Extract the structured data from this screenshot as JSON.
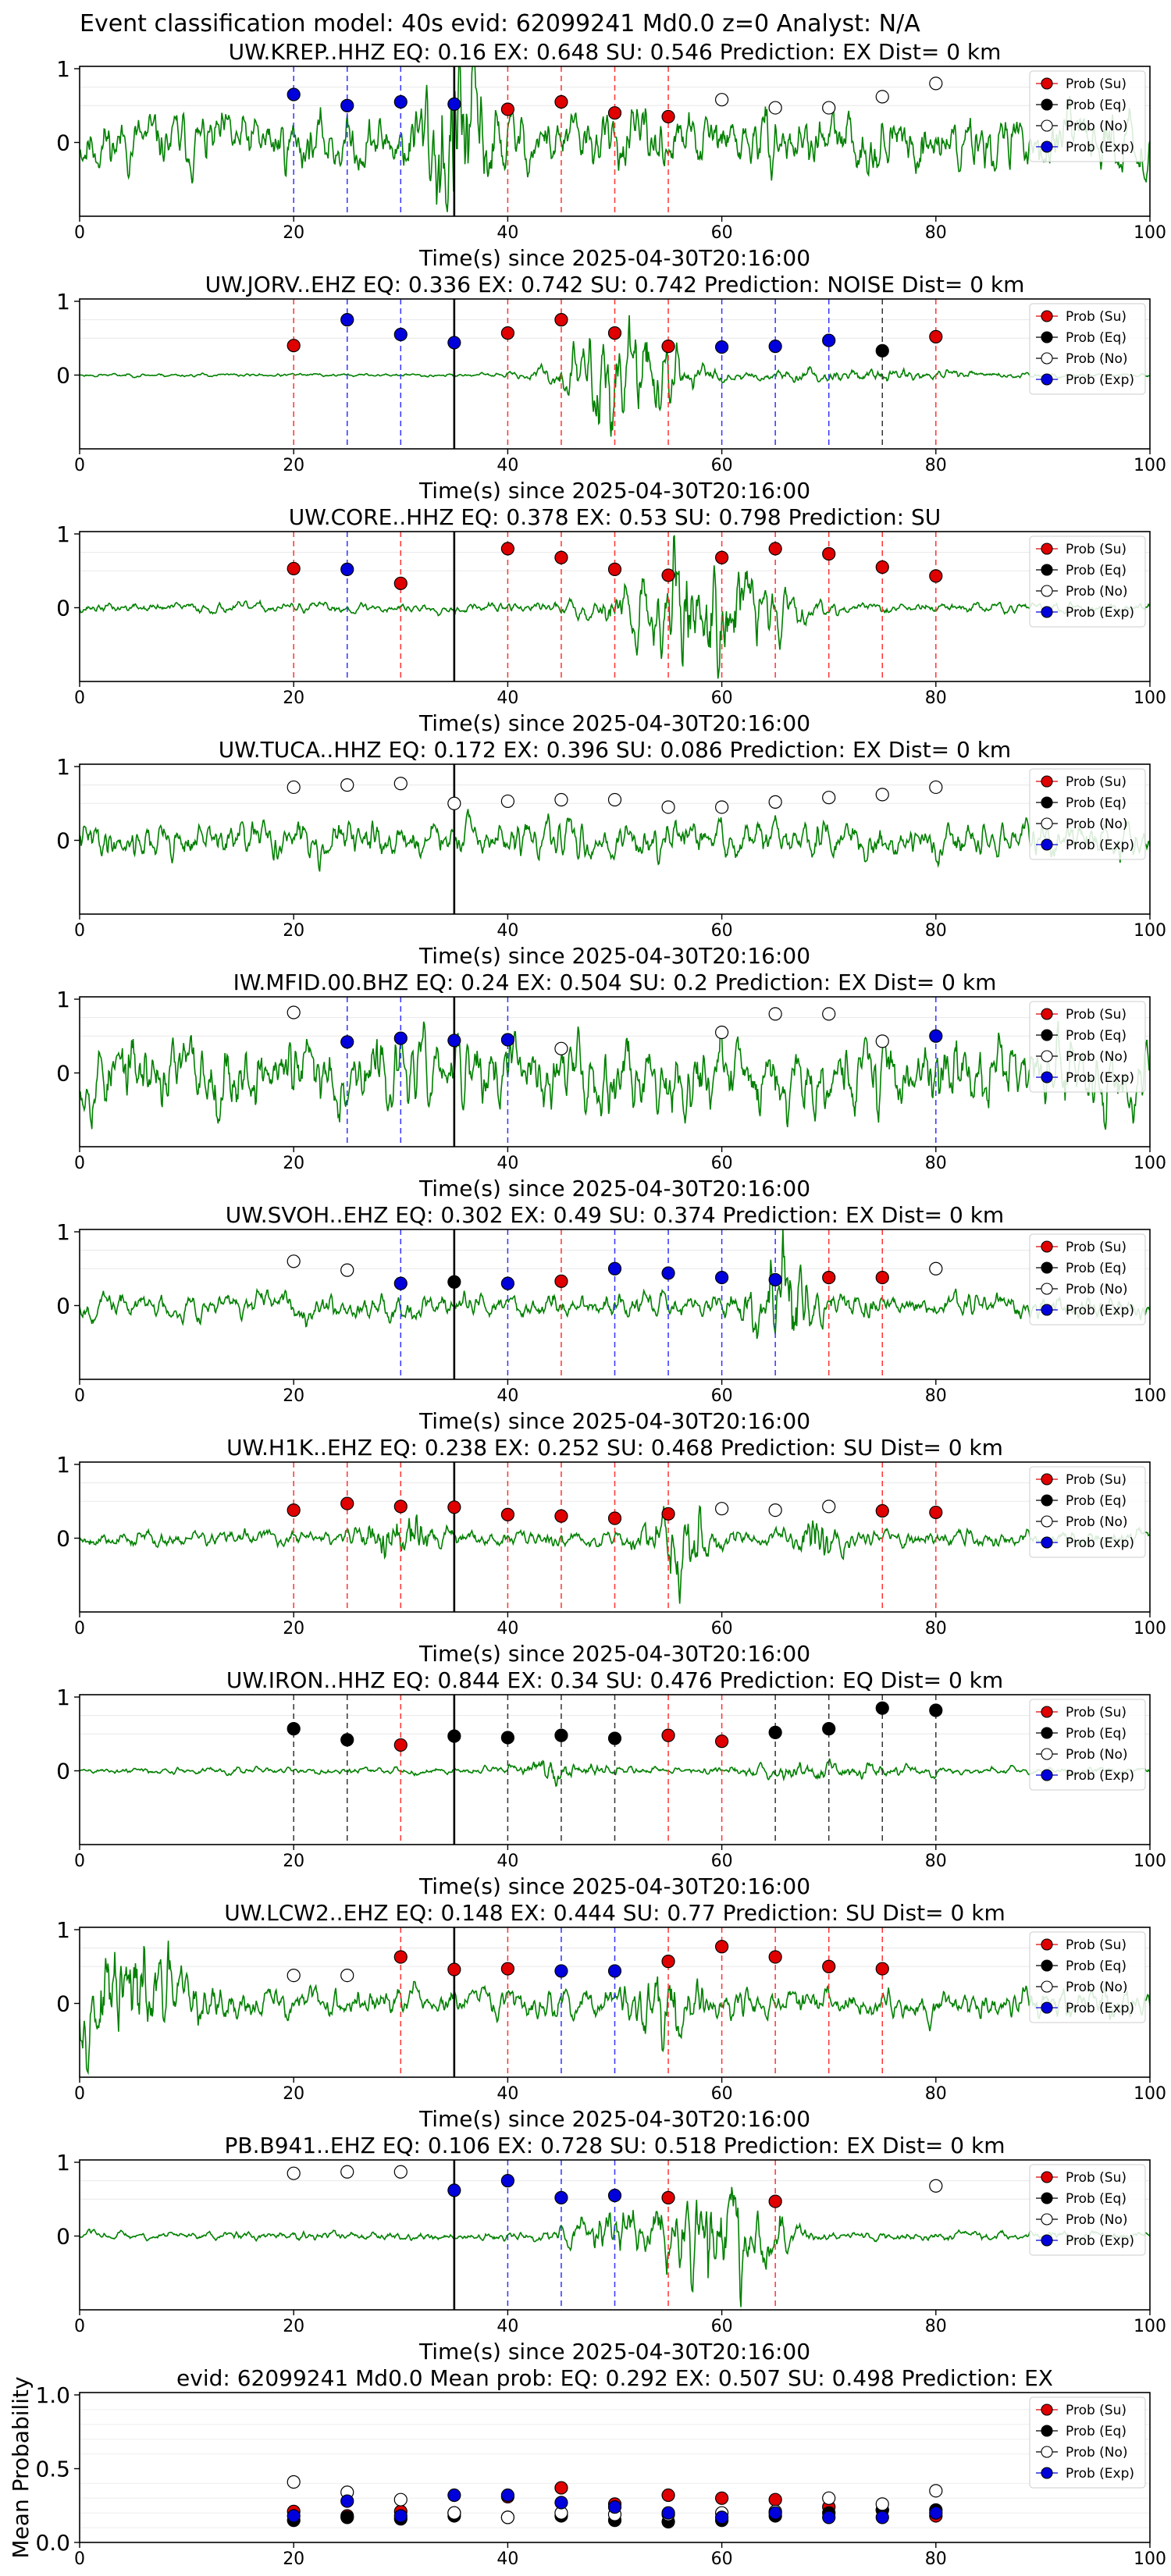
{
  "figure": {
    "suptitle": "Event classification model: 40s evid: 62099241 Md0.0 z=0 Analyst: N/A",
    "xlabel": "Time(s) since 2025-04-30T20:16:00",
    "legend": [
      "Prob (Su)",
      "Prob (Eq)",
      "Prob (No)",
      "Prob (Exp)"
    ],
    "colors": {
      "su": "#e00000",
      "eq": "#000000",
      "no": "#ffffff",
      "exp": "#0000dd",
      "trace": "#008000",
      "su_line": "#ff3333",
      "eq_line": "#333333",
      "exp_line": "#3333ff"
    }
  },
  "chart_data": [
    {
      "type": "scatter",
      "station": "UW.KREP..HHZ",
      "title": "UW.KREP..HHZ   EQ: 0.16  EX: 0.648  SU: 0.546   Prediction: EX    Dist= 0 km",
      "xlim": [
        0,
        100
      ],
      "ylim": [
        -1,
        1
      ],
      "xticks": [
        0,
        20,
        40,
        60,
        80,
        100
      ],
      "yticks": [
        0,
        1
      ],
      "xlabel": "Time(s) since 2025-04-30T20:16:00",
      "ylabel": "",
      "legend_position": "top-right",
      "vertical_line": 35,
      "trace_seed": 11,
      "trace_amp": 0.35,
      "trace_env": [
        [
          35,
          3.0,
          4
        ]
      ],
      "points": [
        [
          20,
          "exp",
          0.65
        ],
        [
          25,
          "exp",
          0.5
        ],
        [
          30,
          "exp",
          0.55
        ],
        [
          35,
          "exp",
          0.52
        ],
        [
          40,
          "su",
          0.45
        ],
        [
          45,
          "su",
          0.55
        ],
        [
          50,
          "su",
          0.4
        ],
        [
          55,
          "su",
          0.35
        ],
        [
          60,
          "no",
          0.58
        ],
        [
          65,
          "no",
          0.47
        ],
        [
          70,
          "no",
          0.47
        ],
        [
          75,
          "no",
          0.62
        ],
        [
          80,
          "no",
          0.8
        ]
      ]
    },
    {
      "type": "scatter",
      "station": "UW.JORV..EHZ",
      "title": "UW.JORV..EHZ   EQ: 0.336  EX: 0.742  SU: 0.742   Prediction: NOISE    Dist= 0 km",
      "xlim": [
        0,
        100
      ],
      "ylim": [
        -1,
        1
      ],
      "xticks": [
        0,
        20,
        40,
        60,
        80,
        100
      ],
      "yticks": [
        0,
        1
      ],
      "xlabel": "Time(s) since 2025-04-30T20:16:00",
      "ylabel": "",
      "legend_position": "top-right",
      "vertical_line": 35,
      "trace_seed": 23,
      "trace_amp": 0.02,
      "trace_env": [
        [
          50,
          5.0,
          25
        ],
        [
          70,
          15.0,
          4
        ]
      ],
      "points": [
        [
          20,
          "su",
          0.4
        ],
        [
          25,
          "exp",
          0.75
        ],
        [
          30,
          "exp",
          0.55
        ],
        [
          35,
          "exp",
          0.44
        ],
        [
          40,
          "su",
          0.57
        ],
        [
          45,
          "su",
          0.75
        ],
        [
          50,
          "su",
          0.57
        ],
        [
          55,
          "su",
          0.39
        ],
        [
          60,
          "exp",
          0.38
        ],
        [
          65,
          "exp",
          0.39
        ],
        [
          70,
          "exp",
          0.47
        ],
        [
          75,
          "eq",
          0.33
        ],
        [
          80,
          "su",
          0.52
        ]
      ]
    },
    {
      "type": "scatter",
      "station": "UW.CORE..HHZ",
      "title": "UW.CORE..HHZ   EQ: 0.378  EX: 0.53  SU: 0.798   Prediction: SU",
      "xlim": [
        0,
        100
      ],
      "ylim": [
        -1,
        1
      ],
      "xticks": [
        0,
        20,
        40,
        60,
        80,
        100
      ],
      "yticks": [
        0,
        1
      ],
      "xlabel": "Time(s) since 2025-04-30T20:16:00",
      "ylabel": "",
      "legend_position": "top-right",
      "vertical_line": 35,
      "trace_seed": 37,
      "trace_amp": 0.06,
      "trace_env": [
        [
          58,
          7.0,
          14
        ]
      ],
      "points": [
        [
          20,
          "su",
          0.53
        ],
        [
          25,
          "exp",
          0.52
        ],
        [
          30,
          "su",
          0.33
        ],
        [
          40,
          "su",
          0.8
        ],
        [
          45,
          "su",
          0.68
        ],
        [
          50,
          "su",
          0.52
        ],
        [
          55,
          "su",
          0.44
        ],
        [
          60,
          "su",
          0.68
        ],
        [
          65,
          "su",
          0.8
        ],
        [
          70,
          "su",
          0.73
        ],
        [
          75,
          "su",
          0.55
        ],
        [
          80,
          "su",
          0.43
        ]
      ]
    },
    {
      "type": "scatter",
      "station": "UW.TUCA..HHZ",
      "title": "UW.TUCA..HHZ   EQ: 0.172  EX: 0.396  SU: 0.086   Prediction: EX    Dist= 0 km",
      "xlim": [
        0,
        100
      ],
      "ylim": [
        -1,
        1
      ],
      "xticks": [
        0,
        20,
        40,
        60,
        80,
        100
      ],
      "yticks": [
        0,
        1
      ],
      "xlabel": "Time(s) since 2025-04-30T20:16:00",
      "ylabel": "",
      "legend_position": "top-right",
      "vertical_line": 35,
      "trace_seed": 41,
      "trace_amp": 0.22,
      "trace_env": [],
      "points": [
        [
          20,
          "no",
          0.72
        ],
        [
          25,
          "no",
          0.75
        ],
        [
          30,
          "no",
          0.77
        ],
        [
          35,
          "no",
          0.5
        ],
        [
          40,
          "no",
          0.53
        ],
        [
          45,
          "no",
          0.55
        ],
        [
          50,
          "no",
          0.55
        ],
        [
          55,
          "no",
          0.45
        ],
        [
          60,
          "no",
          0.45
        ],
        [
          65,
          "no",
          0.52
        ],
        [
          70,
          "no",
          0.58
        ],
        [
          75,
          "no",
          0.62
        ],
        [
          80,
          "no",
          0.72
        ]
      ]
    },
    {
      "type": "scatter",
      "station": "IW.MFID.00.BHZ",
      "title": "IW.MFID.00.BHZ   EQ: 0.24  EX: 0.504  SU: 0.2   Prediction: EX    Dist= 0 km",
      "xlim": [
        0,
        100
      ],
      "ylim": [
        -1,
        1
      ],
      "xticks": [
        0,
        20,
        40,
        60,
        80,
        100
      ],
      "yticks": [
        0,
        1
      ],
      "xlabel": "Time(s) since 2025-04-30T20:16:00",
      "ylabel": "",
      "legend_position": "top-right",
      "vertical_line": 35,
      "trace_seed": 53,
      "trace_amp": 0.45,
      "trace_env": [],
      "points": [
        [
          20,
          "no",
          0.82
        ],
        [
          25,
          "exp",
          0.42
        ],
        [
          30,
          "exp",
          0.47
        ],
        [
          35,
          "exp",
          0.44
        ],
        [
          40,
          "exp",
          0.45
        ],
        [
          45,
          "no",
          0.33
        ],
        [
          60,
          "no",
          0.55
        ],
        [
          65,
          "no",
          0.8
        ],
        [
          70,
          "no",
          0.8
        ],
        [
          75,
          "no",
          0.43
        ],
        [
          80,
          "exp",
          0.5
        ]
      ]
    },
    {
      "type": "scatter",
      "station": "UW.SVOH..EHZ",
      "title": "UW.SVOH..EHZ   EQ: 0.302  EX: 0.49  SU: 0.374   Prediction: EX    Dist= 0 km",
      "xlim": [
        0,
        100
      ],
      "ylim": [
        -1,
        1
      ],
      "xticks": [
        0,
        20,
        40,
        60,
        80,
        100
      ],
      "yticks": [
        0,
        1
      ],
      "xlabel": "Time(s) since 2025-04-30T20:16:00",
      "ylabel": "",
      "legend_position": "top-right",
      "vertical_line": 35,
      "trace_seed": 67,
      "trace_amp": 0.15,
      "trace_env": [
        [
          66,
          3.0,
          5
        ]
      ],
      "points": [
        [
          20,
          "no",
          0.6
        ],
        [
          25,
          "no",
          0.48
        ],
        [
          30,
          "exp",
          0.3
        ],
        [
          35,
          "eq",
          0.32
        ],
        [
          40,
          "exp",
          0.3
        ],
        [
          45,
          "su",
          0.33
        ],
        [
          50,
          "exp",
          0.5
        ],
        [
          55,
          "exp",
          0.44
        ],
        [
          60,
          "exp",
          0.38
        ],
        [
          65,
          "exp",
          0.35
        ],
        [
          70,
          "su",
          0.38
        ],
        [
          75,
          "su",
          0.38
        ],
        [
          80,
          "no",
          0.5
        ]
      ]
    },
    {
      "type": "scatter",
      "station": "UW.H1K..EHZ",
      "title": "UW.H1K..EHZ   EQ: 0.238  EX: 0.252  SU: 0.468   Prediction: SU    Dist= 0 km",
      "xlim": [
        0,
        100
      ],
      "ylim": [
        -1,
        1
      ],
      "xticks": [
        0,
        20,
        40,
        60,
        80,
        100
      ],
      "yticks": [
        0,
        1
      ],
      "xlabel": "Time(s) since 2025-04-30T20:16:00",
      "ylabel": "",
      "legend_position": "top-right",
      "vertical_line": 35,
      "trace_seed": 79,
      "trace_amp": 0.1,
      "trace_env": [
        [
          30,
          3.0,
          4
        ],
        [
          56,
          3.0,
          5
        ],
        [
          69,
          2.0,
          4
        ]
      ],
      "points": [
        [
          20,
          "su",
          0.38
        ],
        [
          25,
          "su",
          0.47
        ],
        [
          30,
          "su",
          0.43
        ],
        [
          35,
          "su",
          0.42
        ],
        [
          40,
          "su",
          0.32
        ],
        [
          45,
          "su",
          0.3
        ],
        [
          50,
          "su",
          0.27
        ],
        [
          55,
          "su",
          0.33
        ],
        [
          60,
          "no",
          0.4
        ],
        [
          65,
          "no",
          0.38
        ],
        [
          70,
          "no",
          0.43
        ],
        [
          75,
          "su",
          0.37
        ],
        [
          80,
          "su",
          0.35
        ]
      ]
    },
    {
      "type": "scatter",
      "station": "UW.IRON..HHZ",
      "title": "UW.IRON..HHZ   EQ: 0.844  EX: 0.34  SU: 0.476   Prediction: EQ    Dist= 0 km",
      "xlim": [
        0,
        100
      ],
      "ylim": [
        -1,
        1
      ],
      "xticks": [
        0,
        20,
        40,
        60,
        80,
        100
      ],
      "yticks": [
        0,
        1
      ],
      "xlabel": "Time(s) since 2025-04-30T20:16:00",
      "ylabel": "",
      "legend_position": "top-right",
      "vertical_line": 35,
      "trace_seed": 89,
      "trace_amp": 0.04,
      "trace_env": [
        [
          45,
          4.0,
          4
        ],
        [
          70,
          8.0,
          3
        ]
      ],
      "points": [
        [
          20,
          "eq",
          0.57
        ],
        [
          25,
          "eq",
          0.42
        ],
        [
          30,
          "su",
          0.35
        ],
        [
          35,
          "eq",
          0.47
        ],
        [
          40,
          "eq",
          0.45
        ],
        [
          45,
          "eq",
          0.48
        ],
        [
          50,
          "eq",
          0.44
        ],
        [
          55,
          "su",
          0.48
        ],
        [
          60,
          "su",
          0.4
        ],
        [
          65,
          "eq",
          0.52
        ],
        [
          70,
          "eq",
          0.57
        ],
        [
          75,
          "eq",
          0.85
        ],
        [
          80,
          "eq",
          0.82
        ]
      ]
    },
    {
      "type": "scatter",
      "station": "UW.LCW2..EHZ",
      "title": "UW.LCW2..EHZ   EQ: 0.148  EX: 0.444  SU: 0.77   Prediction: SU    Dist= 0 km",
      "xlim": [
        0,
        100
      ],
      "ylim": [
        -1,
        1
      ],
      "xticks": [
        0,
        20,
        40,
        60,
        80,
        100
      ],
      "yticks": [
        0,
        1
      ],
      "xlabel": "Time(s) since 2025-04-30T20:16:00",
      "ylabel": "",
      "legend_position": "top-right",
      "vertical_line": 35,
      "trace_seed": 97,
      "trace_amp": 0.18,
      "trace_env": [
        [
          5,
          6.0,
          4
        ],
        [
          55,
          3.0,
          3
        ]
      ],
      "points": [
        [
          20,
          "no",
          0.38
        ],
        [
          25,
          "no",
          0.38
        ],
        [
          30,
          "su",
          0.63
        ],
        [
          35,
          "su",
          0.46
        ],
        [
          40,
          "su",
          0.47
        ],
        [
          45,
          "exp",
          0.44
        ],
        [
          50,
          "exp",
          0.44
        ],
        [
          55,
          "su",
          0.57
        ],
        [
          60,
          "su",
          0.77
        ],
        [
          65,
          "su",
          0.63
        ],
        [
          70,
          "su",
          0.5
        ],
        [
          75,
          "su",
          0.47
        ]
      ]
    },
    {
      "type": "scatter",
      "station": "PB.B941..EHZ",
      "title": "PB.B941..EHZ   EQ: 0.106  EX: 0.728  SU: 0.518   Prediction: EX    Dist= 0 km",
      "xlim": [
        0,
        100
      ],
      "ylim": [
        -1,
        1
      ],
      "xticks": [
        0,
        20,
        40,
        60,
        80,
        100
      ],
      "yticks": [
        0,
        1
      ],
      "xlabel": "Time(s) since 2025-04-30T20:16:00",
      "ylabel": "",
      "legend_position": "top-right",
      "vertical_line": 35,
      "trace_seed": 103,
      "trace_amp": 0.05,
      "trace_env": [
        [
          49,
          4.0,
          5
        ],
        [
          60,
          5.0,
          16
        ]
      ],
      "points": [
        [
          20,
          "no",
          0.85
        ],
        [
          25,
          "no",
          0.87
        ],
        [
          30,
          "no",
          0.87
        ],
        [
          35,
          "exp",
          0.62
        ],
        [
          40,
          "exp",
          0.75
        ],
        [
          45,
          "exp",
          0.52
        ],
        [
          50,
          "exp",
          0.55
        ],
        [
          55,
          "su",
          0.52
        ],
        [
          65,
          "su",
          0.47
        ],
        [
          80,
          "no",
          0.68
        ]
      ]
    },
    {
      "type": "scatter",
      "station": "mean",
      "title": "evid: 62099241  Md0.0   Mean prob:   EQ: 0.292  EX: 0.507  SU: 0.498   Prediction: EX",
      "xlim": [
        0,
        100
      ],
      "ylim": [
        0,
        1
      ],
      "xticks": [
        0,
        20,
        40,
        60,
        80,
        100
      ],
      "yticks": [
        0.0,
        0.5,
        1.0
      ],
      "ytick_labels": [
        "0.0",
        "0.5",
        "1.0"
      ],
      "xlabel": "",
      "ylabel": "Mean Probability",
      "legend_position": "top-right",
      "series": [
        {
          "name": "Prob (Su)",
          "key": "su",
          "x": [
            20,
            25,
            30,
            35,
            40,
            45,
            50,
            55,
            60,
            65,
            70,
            75,
            80
          ],
          "y": [
            0.21,
            0.18,
            0.21,
            0.2,
            0.31,
            0.37,
            0.26,
            0.32,
            0.3,
            0.29,
            0.24,
            0.22,
            0.18
          ]
        },
        {
          "name": "Prob (Eq)",
          "key": "eq",
          "x": [
            20,
            25,
            30,
            35,
            40,
            45,
            50,
            55,
            60,
            65,
            70,
            75,
            80
          ],
          "y": [
            0.15,
            0.17,
            0.16,
            0.18,
            0.17,
            0.18,
            0.15,
            0.14,
            0.15,
            0.18,
            0.2,
            0.22,
            0.22
          ]
        },
        {
          "name": "Prob (No)",
          "key": "no",
          "x": [
            20,
            25,
            30,
            35,
            40,
            45,
            50,
            55,
            60,
            65,
            70,
            75,
            80
          ],
          "y": [
            0.41,
            0.34,
            0.29,
            0.2,
            0.17,
            0.2,
            0.19,
            0.19,
            0.2,
            0.21,
            0.3,
            0.26,
            0.35
          ]
        },
        {
          "name": "Prob (Exp)",
          "key": "exp",
          "x": [
            20,
            25,
            30,
            35,
            40,
            45,
            50,
            55,
            60,
            65,
            70,
            75,
            80
          ],
          "y": [
            0.18,
            0.28,
            0.18,
            0.32,
            0.32,
            0.27,
            0.24,
            0.2,
            0.17,
            0.2,
            0.17,
            0.17,
            0.2
          ]
        }
      ]
    }
  ]
}
